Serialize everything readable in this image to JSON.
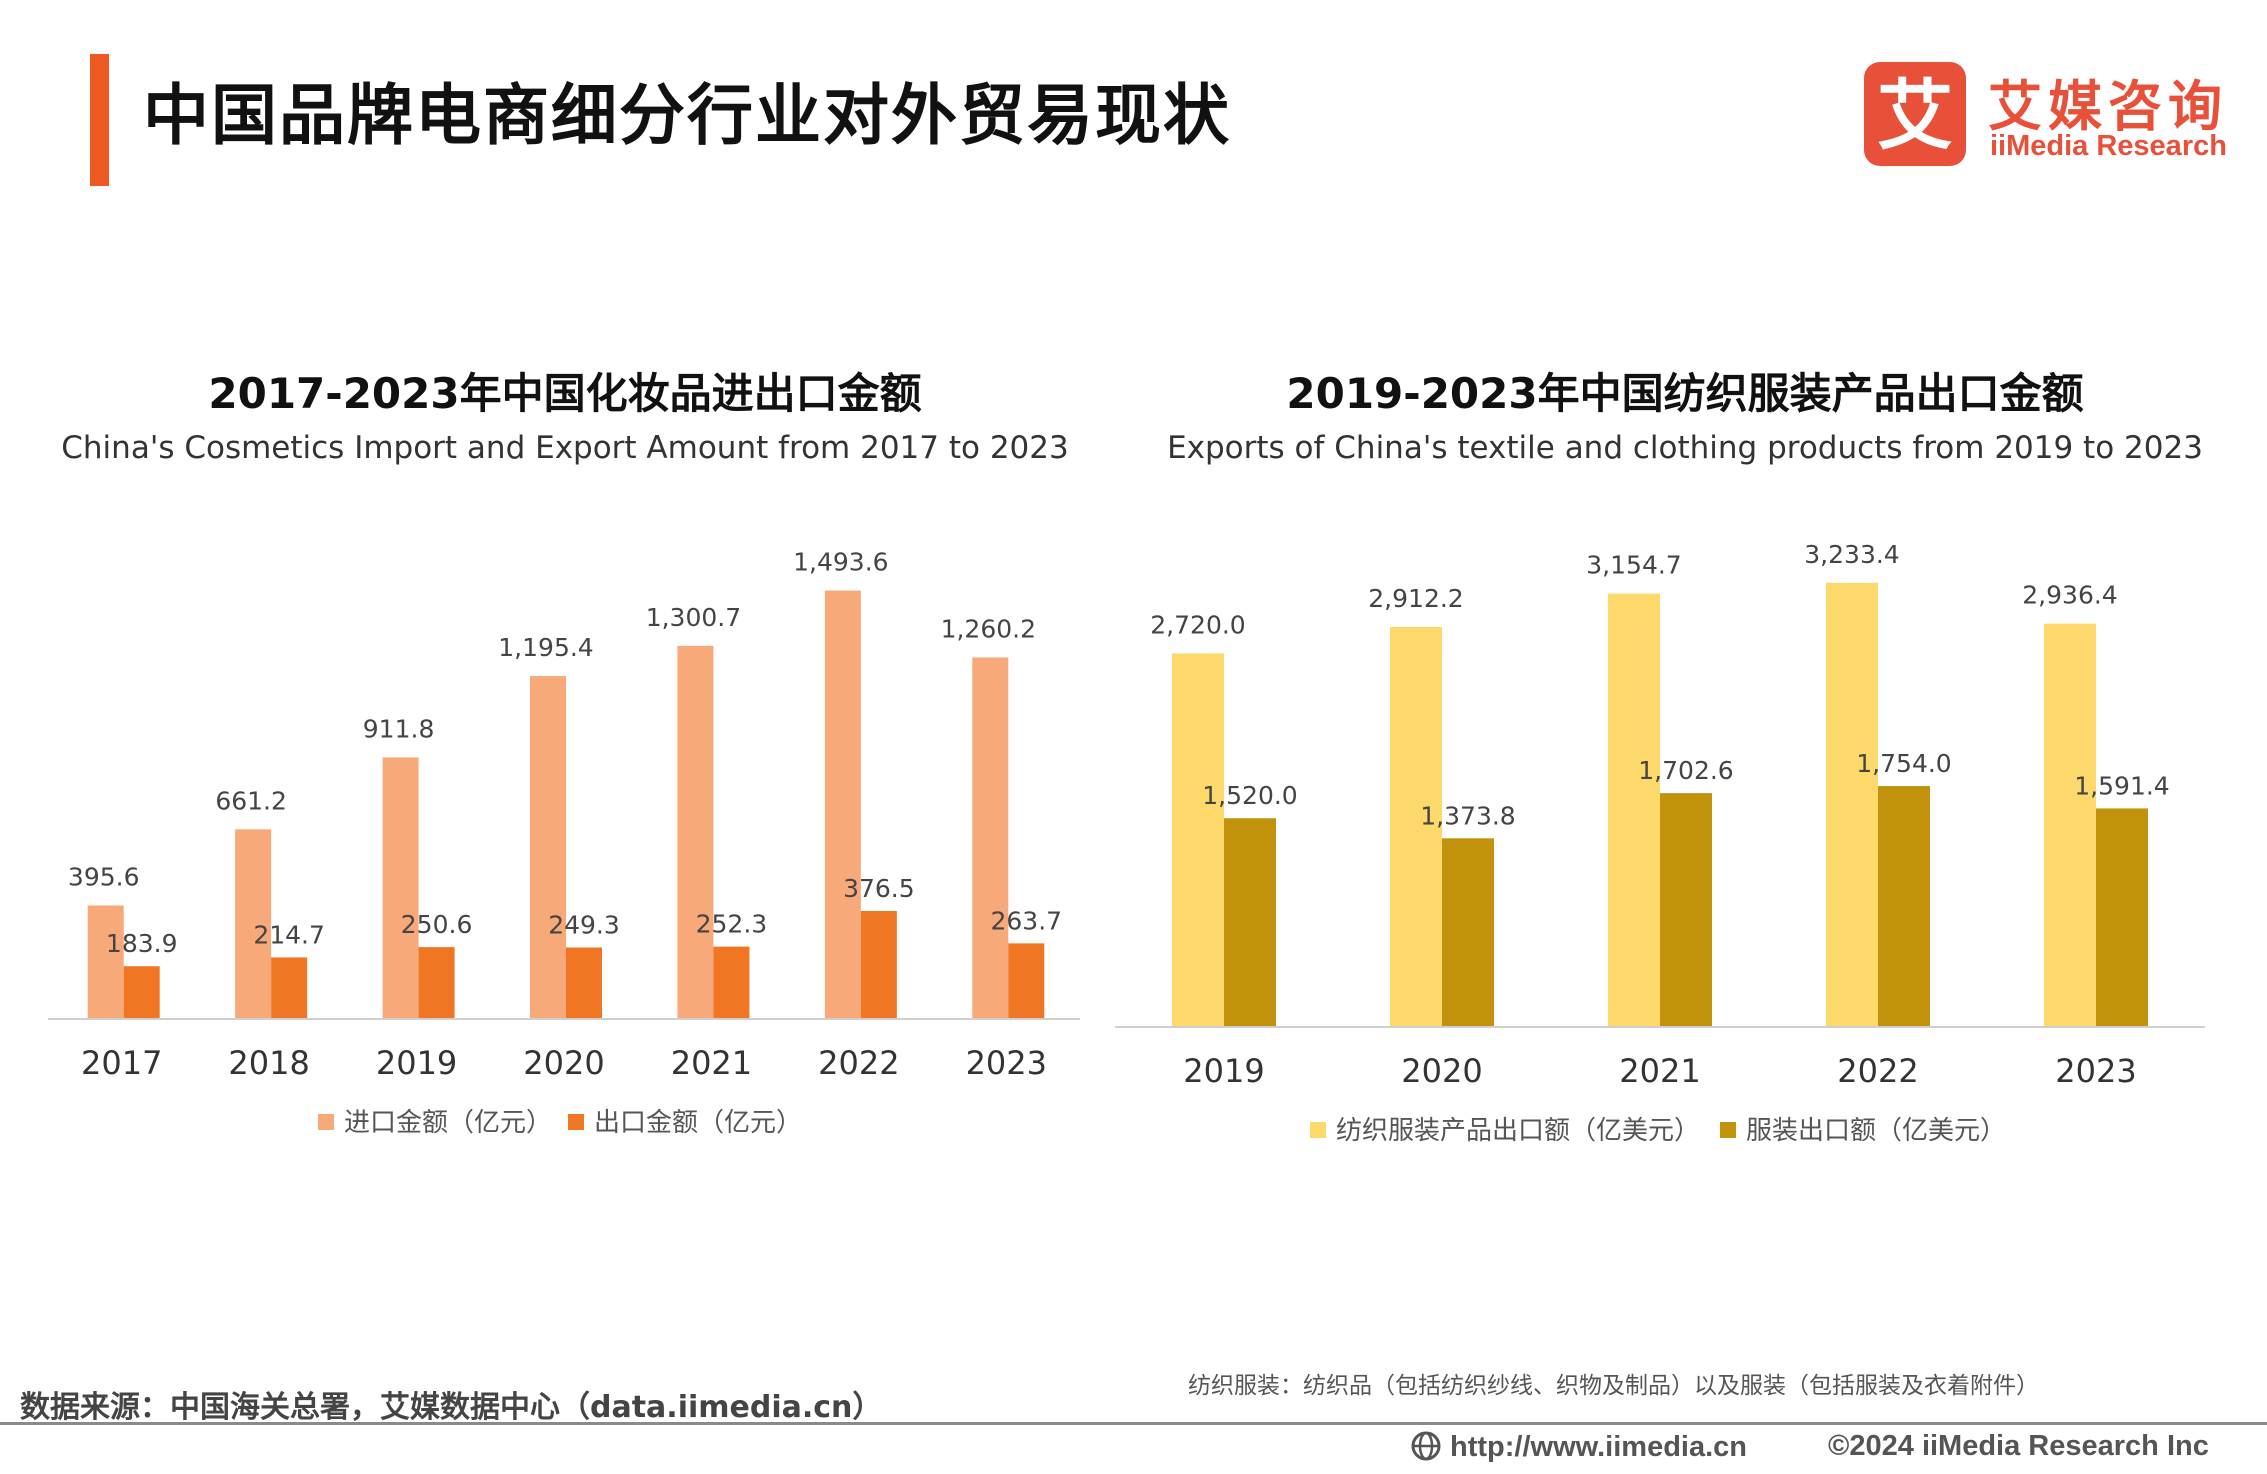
{
  "page": {
    "title": "中国品牌电商细分行业对外贸易现状",
    "accent_color": "#ee5a24"
  },
  "logo": {
    "mark_text": "艾",
    "name_cn": "艾媒咨询",
    "name_en": "iiMedia Research",
    "color": "#e8503a"
  },
  "chart_data": [
    {
      "type": "bar",
      "title": "2017-2023年中国化妆品进出口金额",
      "subtitle": "China's Cosmetics Import and Export Amount from 2017 to 2023",
      "categories": [
        "2017",
        "2018",
        "2019",
        "2020",
        "2021",
        "2022",
        "2023"
      ],
      "series": [
        {
          "name": "进口金额（亿元）",
          "color": "#f7a97a",
          "values": [
            395.6,
            661.2,
            911.8,
            1195.4,
            1300.7,
            1493.6,
            1260.2
          ],
          "labels": [
            "395.6",
            "661.2",
            "911.8",
            "1,195.4",
            "1,300.7",
            "1,493.6",
            "1,260.2"
          ]
        },
        {
          "name": "出口金额（亿元）",
          "color": "#f07624",
          "values": [
            183.9,
            214.7,
            250.6,
            249.3,
            252.3,
            376.5,
            263.7
          ],
          "labels": [
            "183.9",
            "214.7",
            "250.6",
            "249.3",
            "252.3",
            "376.5",
            "263.7"
          ]
        }
      ],
      "ylim": [
        0,
        1600
      ],
      "grid": false,
      "legend_position": "bottom"
    },
    {
      "type": "bar",
      "title": "2019-2023年中国纺织服装产品出口金额",
      "subtitle": "Exports of China's textile and clothing products from 2019 to 2023",
      "categories": [
        "2019",
        "2020",
        "2021",
        "2022",
        "2023"
      ],
      "series": [
        {
          "name": "纺织服装产品出口额（亿美元）",
          "color": "#fcd96a",
          "values": [
            2720.0,
            2912.2,
            3154.7,
            3233.4,
            2936.4
          ],
          "labels": [
            "2,720.0",
            "2,912.2",
            "3,154.7",
            "3,233.4",
            "2,936.4"
          ]
        },
        {
          "name": "服装出口额（亿美元）",
          "color": "#c2920c",
          "values": [
            1520.0,
            1373.8,
            1702.6,
            1754.0,
            1591.4
          ],
          "labels": [
            "1,520.0",
            "1,373.8",
            "1,702.6",
            "1,754.0",
            "1,591.4"
          ]
        }
      ],
      "ylim": [
        0,
        3400
      ],
      "grid": false,
      "legend_position": "bottom"
    }
  ],
  "notes": {
    "footnote": "纺织服装：纺织品（包括纺织纱线、织物及制品）以及服装（包括服装及衣着附件）",
    "source": "数据来源：中国海关总署，艾媒数据中心（data.iimedia.cn）"
  },
  "footer": {
    "url": "http://www.iimedia.cn",
    "copyright": "©2024  iiMedia Research  Inc",
    "url_icon": "globe-icon"
  }
}
